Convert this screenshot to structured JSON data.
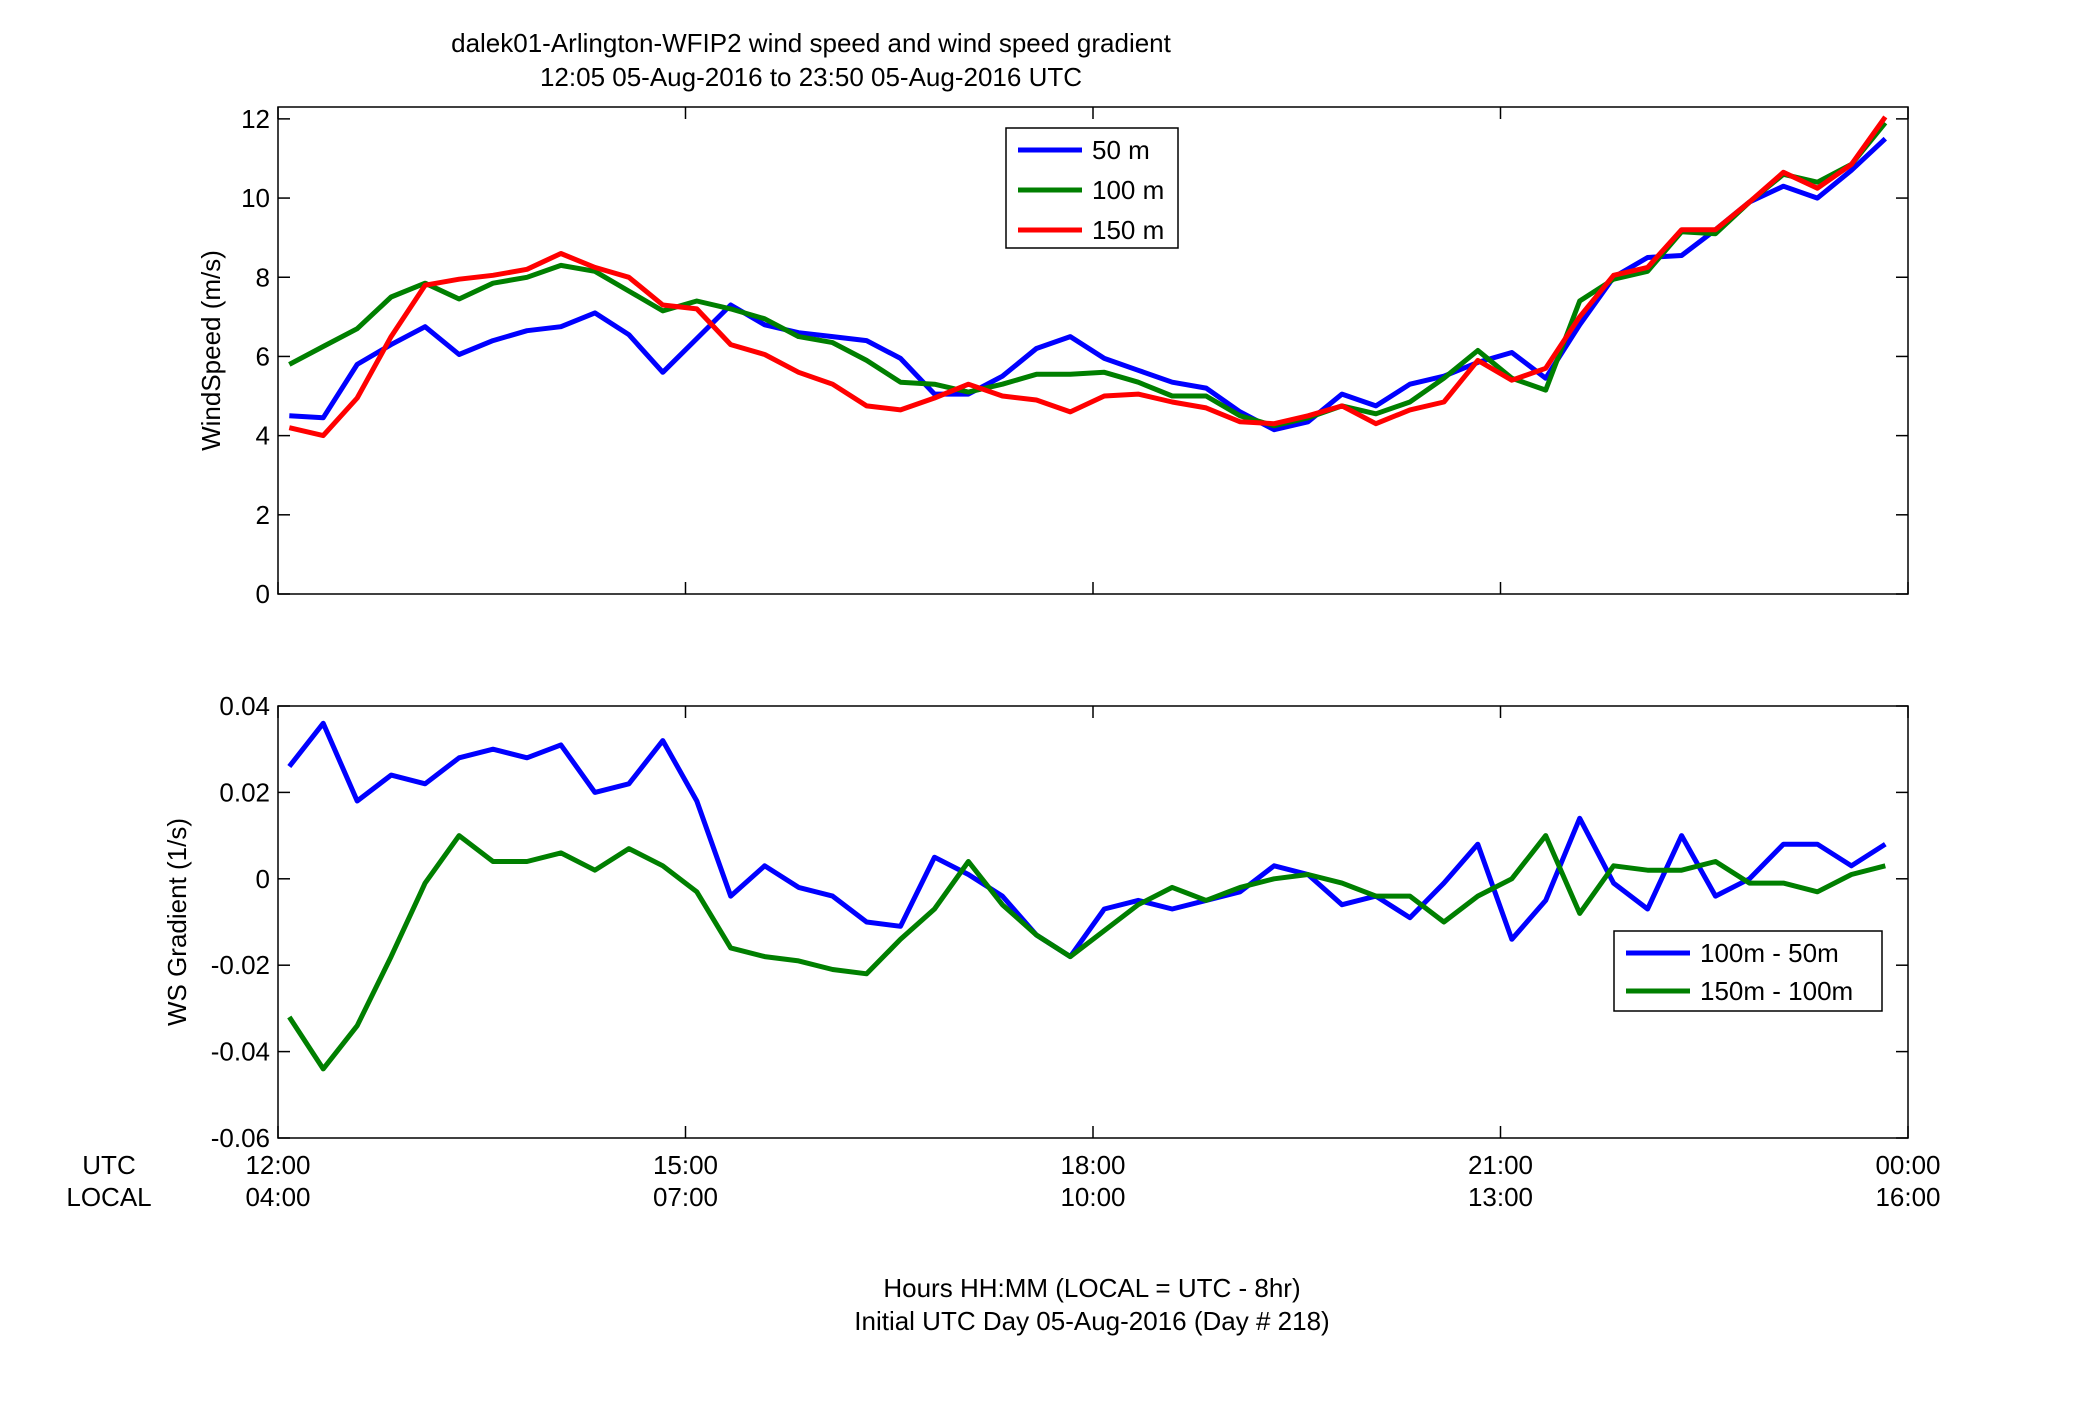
{
  "figure": {
    "title": "dalek01-Arlington-WFIP2  wind speed and wind speed gradient",
    "subtitle": "12:05 05-Aug-2016 to 23:50 05-Aug-2016  UTC",
    "xlabel_line1": "Hours HH:MM  (LOCAL = UTC - 8hr)",
    "xlabel_line2": "Initial UTC Day 05-Aug-2016 (Day # 218)",
    "row_label_utc": "UTC",
    "row_label_local": "LOCAL",
    "x_ticks_utc": [
      "12:00",
      "15:00",
      "18:00",
      "21:00",
      "00:00"
    ],
    "x_ticks_local": [
      "04:00",
      "07:00",
      "10:00",
      "13:00",
      "16:00"
    ]
  },
  "chart_data": [
    {
      "type": "line",
      "ylabel": "WindSpeed (m/s)",
      "xlim": [
        12,
        24
      ],
      "ylim": [
        0,
        12.3
      ],
      "y_ticks": [
        0,
        2,
        4,
        6,
        8,
        10,
        12
      ],
      "x_ticks": [
        12,
        15,
        18,
        21,
        24
      ],
      "legend_position": "top-center",
      "x": [
        12.083,
        12.333,
        12.583,
        12.833,
        13.083,
        13.333,
        13.583,
        13.833,
        14.083,
        14.333,
        14.583,
        14.833,
        15.083,
        15.333,
        15.583,
        15.833,
        16.083,
        16.333,
        16.583,
        16.833,
        17.083,
        17.333,
        17.583,
        17.833,
        18.083,
        18.333,
        18.583,
        18.833,
        19.083,
        19.333,
        19.583,
        19.833,
        20.083,
        20.333,
        20.583,
        20.833,
        21.083,
        21.333,
        21.583,
        21.833,
        22.083,
        22.333,
        22.583,
        22.833,
        23.083,
        23.333,
        23.583,
        23.833
      ],
      "series": [
        {
          "name": "50 m",
          "color": "#0000ff",
          "values": [
            4.5,
            4.45,
            5.8,
            6.3,
            6.75,
            6.05,
            6.4,
            6.65,
            6.75,
            7.1,
            6.55,
            5.6,
            6.45,
            7.3,
            6.8,
            6.6,
            6.5,
            6.4,
            5.95,
            5.05,
            5.05,
            5.5,
            6.2,
            6.5,
            5.95,
            5.65,
            5.35,
            5.2,
            4.6,
            4.15,
            4.35,
            5.05,
            4.75,
            5.3,
            5.5,
            5.85,
            6.1,
            5.45,
            6.8,
            8.0,
            8.5,
            8.55,
            9.2,
            9.9,
            10.3,
            10.0,
            10.7,
            11.5
          ]
        },
        {
          "name": "100 m",
          "color": "#007f00",
          "values": [
            5.8,
            6.25,
            6.7,
            7.5,
            7.85,
            7.45,
            7.85,
            8.0,
            8.3,
            8.15,
            7.65,
            7.15,
            7.4,
            7.2,
            6.95,
            6.5,
            6.35,
            5.9,
            5.35,
            5.3,
            5.1,
            5.3,
            5.55,
            5.55,
            5.6,
            5.35,
            5.0,
            5.0,
            4.5,
            4.25,
            4.45,
            4.75,
            4.55,
            4.85,
            5.45,
            6.15,
            5.45,
            5.15,
            7.4,
            7.95,
            8.15,
            9.15,
            9.1,
            9.9,
            10.6,
            10.4,
            10.85,
            11.9
          ]
        },
        {
          "name": "150 m",
          "color": "#ff0000",
          "values": [
            4.2,
            4.0,
            4.95,
            6.5,
            7.8,
            7.95,
            8.05,
            8.2,
            8.6,
            8.25,
            8.0,
            7.3,
            7.2,
            6.3,
            6.05,
            5.6,
            5.3,
            4.75,
            4.65,
            4.95,
            5.3,
            5.0,
            4.9,
            4.6,
            5.0,
            5.05,
            4.85,
            4.7,
            4.35,
            4.3,
            4.5,
            4.75,
            4.3,
            4.65,
            4.85,
            5.9,
            5.4,
            5.7,
            7.0,
            8.05,
            8.25,
            9.2,
            9.2,
            9.9,
            10.65,
            10.25,
            10.85,
            12.05
          ]
        }
      ]
    },
    {
      "type": "line",
      "ylabel": "WS Gradient (1/s)",
      "xlim": [
        12,
        24
      ],
      "ylim": [
        -0.06,
        0.04
      ],
      "y_ticks": [
        -0.06,
        -0.04,
        -0.02,
        0,
        0.02,
        0.04
      ],
      "y_tick_labels": [
        "-0.06",
        "-0.04",
        "-0.02",
        "0",
        "0.02",
        "0.04"
      ],
      "x_ticks": [
        12,
        15,
        18,
        21,
        24
      ],
      "legend_position": "bottom-right",
      "x": [
        12.083,
        12.333,
        12.583,
        12.833,
        13.083,
        13.333,
        13.583,
        13.833,
        14.083,
        14.333,
        14.583,
        14.833,
        15.083,
        15.333,
        15.583,
        15.833,
        16.083,
        16.333,
        16.583,
        16.833,
        17.083,
        17.333,
        17.583,
        17.833,
        18.083,
        18.333,
        18.583,
        18.833,
        19.083,
        19.333,
        19.583,
        19.833,
        20.083,
        20.333,
        20.583,
        20.833,
        21.083,
        21.333,
        21.583,
        21.833,
        22.083,
        22.333,
        22.583,
        22.833,
        23.083,
        23.333,
        23.583,
        23.833
      ],
      "series": [
        {
          "name": "100m - 50m",
          "color": "#0000ff",
          "values": [
            0.026,
            0.036,
            0.018,
            0.024,
            0.022,
            0.028,
            0.03,
            0.028,
            0.031,
            0.02,
            0.022,
            0.032,
            0.018,
            -0.004,
            0.003,
            -0.002,
            -0.004,
            -0.01,
            -0.011,
            0.005,
            0.001,
            -0.004,
            -0.013,
            -0.018,
            -0.007,
            -0.005,
            -0.007,
            -0.005,
            -0.003,
            0.003,
            0.001,
            -0.006,
            -0.004,
            -0.009,
            -0.001,
            0.008,
            -0.014,
            -0.005,
            0.014,
            -0.001,
            -0.007,
            0.01,
            -0.004,
            0.0,
            0.008,
            0.008,
            0.003,
            0.008
          ]
        },
        {
          "name": "150m - 100m",
          "color": "#007f00",
          "values": [
            -0.032,
            -0.044,
            -0.034,
            -0.018,
            -0.001,
            0.01,
            0.004,
            0.004,
            0.006,
            0.002,
            0.007,
            0.003,
            -0.003,
            -0.016,
            -0.018,
            -0.019,
            -0.021,
            -0.022,
            -0.014,
            -0.007,
            0.004,
            -0.006,
            -0.013,
            -0.018,
            -0.012,
            -0.006,
            -0.002,
            -0.005,
            -0.002,
            0.0,
            0.001,
            -0.001,
            -0.004,
            -0.004,
            -0.01,
            -0.004,
            0.0,
            0.01,
            -0.008,
            0.003,
            0.002,
            0.002,
            0.004,
            -0.001,
            -0.001,
            -0.003,
            0.001,
            0.003
          ]
        }
      ]
    }
  ]
}
